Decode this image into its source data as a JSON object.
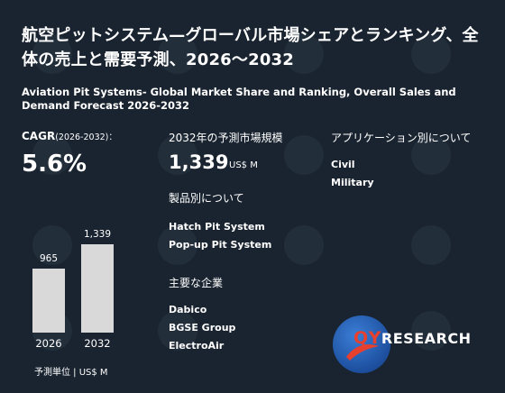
{
  "title_jp": "航空ピットシステム—グローバル市場シェアとランキング、全体の売上と需要予測、2026～2032",
  "title_en": "Aviation Pit Systems- Global Market Share and Ranking, Overall Sales and Demand Forecast 2026-2032",
  "cagr": {
    "label": "CAGR",
    "period": "(2026-2032)：",
    "value": "5.6%"
  },
  "chart_data": {
    "type": "bar",
    "categories": [
      "2026",
      "2032"
    ],
    "values": [
      965,
      1339
    ],
    "value_labels": [
      "965",
      "1,339"
    ],
    "unit_label": "予測単位 | US$ M"
  },
  "market": {
    "heading": "2032年の予測市場規模",
    "value": "1,339",
    "unit": "US$ M"
  },
  "products": {
    "heading": "製品別について",
    "items": [
      "Hatch Pit System",
      "Pop-up Pit System"
    ]
  },
  "companies": {
    "heading": "主要な企業",
    "items": [
      "Dabico",
      "BGSE Group",
      "ElectroAir"
    ]
  },
  "applications": {
    "heading": "アプリケーション別について",
    "items": [
      "Civil",
      "Military"
    ]
  },
  "logo": {
    "q": "QY",
    "rest": "RESEARCH"
  },
  "colors": {
    "background": "#1a2430",
    "bar": "#d9d9d9",
    "logo_red": "#e8402f",
    "logo_blue": "#1d4f9e"
  }
}
